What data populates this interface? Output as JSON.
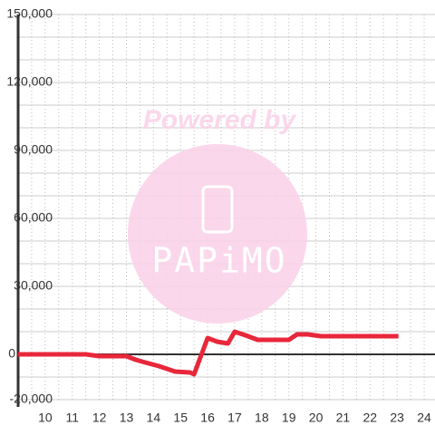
{
  "chart_data": {
    "type": "line",
    "x": [
      9,
      11.5,
      12,
      13,
      13.35,
      13.7,
      14.2,
      14.8,
      15.35,
      15.5,
      16,
      16.35,
      16.75,
      17,
      17.4,
      17.85,
      19,
      19.3,
      19.7,
      20.2,
      23.05
    ],
    "series": [
      {
        "color": "#e8273a",
        "values": [
          0,
          0,
          -800,
          -800,
          -2400,
          -3600,
          -5200,
          -7600,
          -8000,
          -8800,
          7200,
          5600,
          4800,
          10000,
          8400,
          6400,
          6400,
          8800,
          8800,
          8000,
          8000
        ]
      }
    ],
    "xlim": [
      9,
      24.4
    ],
    "ylim": [
      -20000,
      150000
    ],
    "xticks": [
      10,
      11,
      12,
      13,
      14,
      15,
      16,
      17,
      18,
      19,
      20,
      21,
      22,
      23,
      24
    ],
    "yticks": [
      {
        "value": -20000,
        "label": "-20,000"
      },
      0,
      {
        "value": 30000,
        "label": "30,000"
      },
      {
        "value": 60000,
        "label": "60,000"
      },
      {
        "value": 90000,
        "label": "90,000"
      },
      {
        "value": 120000,
        "label": "120,000"
      },
      {
        "value": 150000,
        "label": "150,000"
      }
    ],
    "y_minor_ticks": [
      -10000,
      10000,
      20000,
      40000,
      50000,
      70000,
      80000,
      100000,
      110000,
      130000,
      140000
    ],
    "x_minor_ticks": [
      9.5,
      10.5,
      11.5,
      12.5,
      13.5,
      14.5,
      15.5,
      16.5,
      17.5,
      18.5,
      19.5,
      20.5,
      21.5,
      22.5,
      23.5
    ],
    "grid": true
  },
  "watermark": {
    "title": "Powered by",
    "logo": "PAPiMO"
  }
}
